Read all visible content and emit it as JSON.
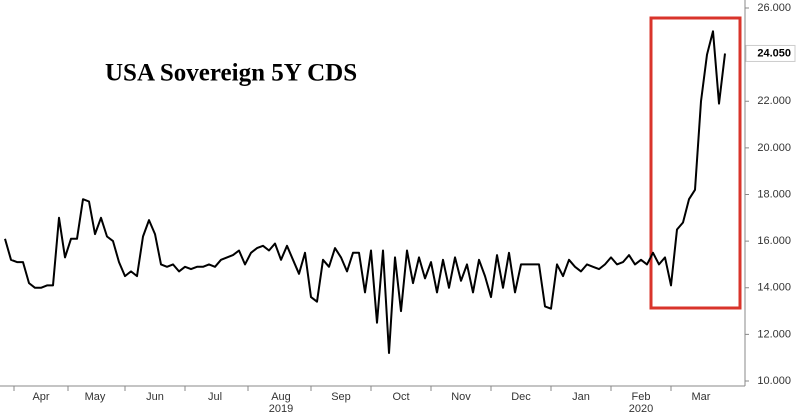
{
  "chart_data": {
    "type": "line",
    "title": "USA Sovereign 5Y CDS",
    "categories": [
      null,
      null,
      null,
      null,
      null,
      null,
      "Apr",
      null,
      null,
      null,
      null,
      null,
      null,
      null,
      null,
      "May",
      null,
      null,
      null,
      null,
      null,
      null,
      null,
      null,
      null,
      "Jun",
      null,
      null,
      null,
      null,
      null,
      null,
      null,
      null,
      null,
      "Jul",
      null,
      null,
      null,
      null,
      null,
      null,
      null,
      null,
      null,
      null,
      "Aug",
      null,
      null,
      null,
      null,
      null,
      null,
      null,
      null,
      null,
      "Sep",
      null,
      null,
      null,
      null,
      null,
      null,
      null,
      null,
      null,
      "Oct",
      null,
      null,
      null,
      null,
      null,
      null,
      null,
      null,
      null,
      "Nov",
      null,
      null,
      null,
      null,
      null,
      null,
      null,
      null,
      null,
      "Dec",
      null,
      null,
      null,
      null,
      null,
      null,
      null,
      null,
      null,
      "Jan",
      null,
      null,
      null,
      null,
      null,
      null,
      null,
      null,
      null,
      "Feb",
      null,
      null,
      null,
      null,
      null,
      null,
      null,
      null,
      null,
      "Mar",
      null,
      null,
      null,
      null
    ],
    "years": [
      {
        "label": "2019",
        "under": "Aug"
      },
      {
        "label": "2020",
        "under": "Feb"
      }
    ],
    "series": [
      {
        "name": "USA Sovereign 5Y CDS",
        "color": "#000000",
        "values": [
          16.1,
          15.2,
          15.1,
          15.1,
          14.2,
          14.0,
          14.0,
          14.1,
          14.1,
          17.0,
          15.3,
          16.1,
          16.1,
          17.8,
          17.7,
          16.3,
          17.0,
          16.2,
          16.0,
          15.1,
          14.5,
          14.7,
          14.5,
          16.2,
          16.9,
          16.3,
          15.0,
          14.9,
          15.0,
          14.7,
          14.9,
          14.8,
          14.9,
          14.9,
          15.0,
          14.9,
          15.2,
          15.3,
          15.4,
          15.6,
          15.0,
          15.5,
          15.7,
          15.8,
          15.6,
          15.9,
          15.2,
          15.8,
          15.2,
          14.6,
          15.5,
          13.6,
          13.4,
          15.2,
          14.9,
          15.7,
          15.3,
          14.7,
          15.5,
          15.5,
          13.8,
          15.6,
          12.5,
          15.6,
          11.2,
          15.3,
          13.0,
          15.6,
          14.2,
          15.3,
          14.4,
          15.1,
          13.8,
          15.2,
          14.0,
          15.3,
          14.3,
          15.0,
          13.8,
          15.2,
          14.5,
          13.6,
          15.4,
          14.0,
          15.5,
          13.8,
          15.0,
          15.0,
          15.0,
          15.0,
          13.2,
          13.1,
          15.0,
          14.5,
          15.2,
          14.9,
          14.7,
          15.0,
          14.9,
          14.8,
          15.0,
          15.3,
          15.0,
          15.1,
          15.4,
          15.0,
          15.2,
          15.0,
          15.5,
          15.0,
          15.3,
          14.1,
          16.5,
          16.8,
          17.8,
          18.2,
          22.0,
          24.0,
          25.0,
          21.9,
          24.05
        ]
      }
    ],
    "last_label": "24.050",
    "ylim": [
      10,
      26
    ],
    "yticks": [
      {
        "value": 10,
        "label": "10.000"
      },
      {
        "value": 12,
        "label": "12.000"
      },
      {
        "value": 14,
        "label": "14.000"
      },
      {
        "value": 16,
        "label": "16.000"
      },
      {
        "value": 18,
        "label": "18.000"
      },
      {
        "value": 20,
        "label": "20.000"
      },
      {
        "value": 22,
        "label": "22.000"
      },
      {
        "value": 24,
        "label": "24.000"
      },
      {
        "value": 26,
        "label": "26.000"
      }
    ],
    "grid": false
  }
}
